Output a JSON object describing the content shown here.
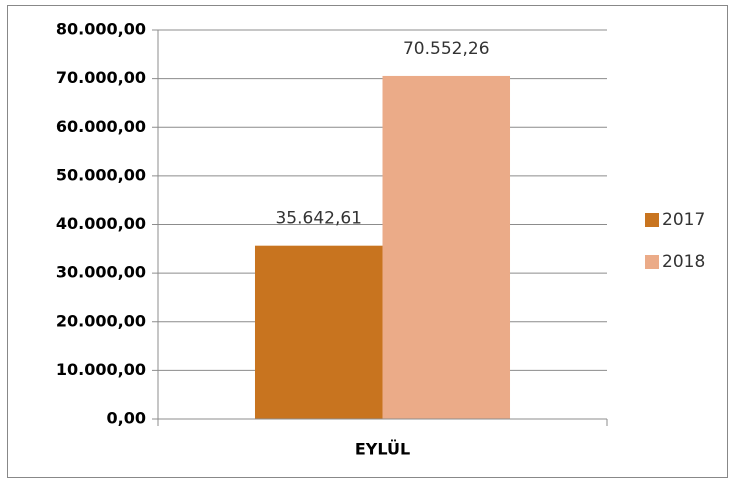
{
  "chart_data": {
    "type": "bar",
    "categories": [
      "EYLÜL"
    ],
    "series": [
      {
        "name": "2017",
        "color": "#c8741f",
        "values": [
          35642.61
        ],
        "value_labels": [
          "35.642,61"
        ]
      },
      {
        "name": "2018",
        "color": "#ebab88",
        "values": [
          70552.26
        ],
        "value_labels": [
          "70.552,26"
        ]
      }
    ],
    "ylim": [
      0,
      80000
    ],
    "yticks": [
      {
        "value": 0,
        "label": "0,00"
      },
      {
        "value": 10000,
        "label": "10.000,00"
      },
      {
        "value": 20000,
        "label": "20.000,00"
      },
      {
        "value": 30000,
        "label": "30.000,00"
      },
      {
        "value": 40000,
        "label": "40.000,00"
      },
      {
        "value": 50000,
        "label": "50.000,00"
      },
      {
        "value": 60000,
        "label": "60.000,00"
      },
      {
        "value": 70000,
        "label": "70.000,00"
      },
      {
        "value": 80000,
        "label": "80.000,00"
      }
    ],
    "grid": true,
    "legend": "right"
  }
}
